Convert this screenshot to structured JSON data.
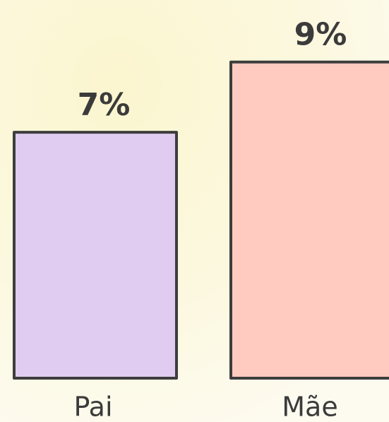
{
  "chart_data": {
    "type": "bar",
    "categories": [
      "Pai",
      "Mãe"
    ],
    "values": [
      7,
      9
    ],
    "value_labels": [
      "7%",
      "9%"
    ],
    "colors": [
      "#e0ccf1",
      "#ffcbc1"
    ]
  }
}
